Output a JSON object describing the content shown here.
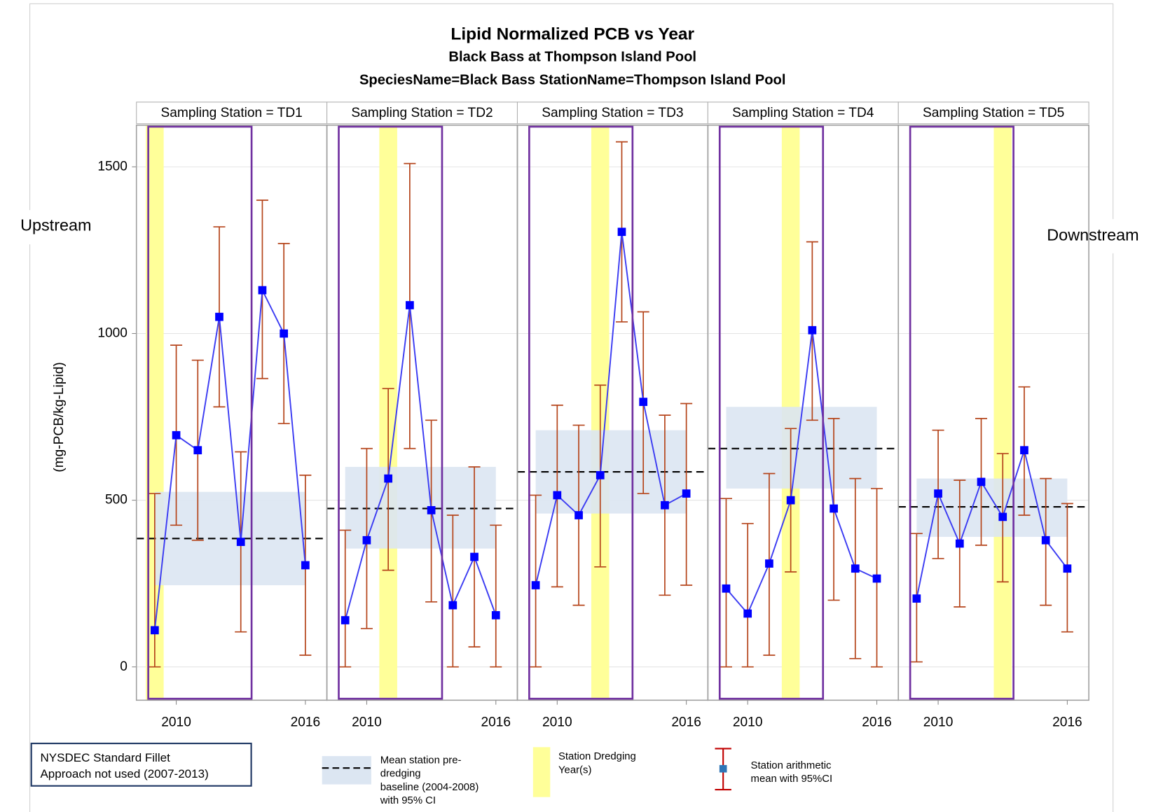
{
  "chart_data": {
    "type": "errorbar-panel",
    "title": "Lipid Normalized PCB vs Year",
    "subtitle": "Black Bass at Thompson Island Pool",
    "subtitle2": "SpeciesName=Black Bass StationName=Thompson Island Pool",
    "ylabel": "(mg-PCB/kg-Lipid)",
    "ylim": [
      -100,
      1625
    ],
    "yticks": [
      0,
      500,
      1000,
      1500
    ],
    "xlim": [
      2008.15,
      2017.0
    ],
    "xticks": [
      2010,
      2016
    ],
    "grid": true,
    "line_color": "#3b3bf2",
    "marker_color": "#0000ff",
    "errorbar_color": "#b5451b",
    "baseline_color": "#dce6f2",
    "dredging_color": "#ffff99",
    "fillet_color": "#7030a0",
    "fillet_xlim": [
      2008.7,
      2013.5
    ],
    "left_annotation": "Upstream",
    "right_annotation": "Downstream",
    "panels": [
      {
        "title": "Sampling Station = TD1",
        "x": [
          2009,
          2010,
          2011,
          2012,
          2013,
          2014,
          2015,
          2016
        ],
        "values": [
          110,
          695,
          650,
          1050,
          375,
          1130,
          1000,
          305
        ],
        "lower": [
          0,
          425,
          380,
          780,
          105,
          865,
          730,
          35
        ],
        "upper": [
          520,
          965,
          920,
          1320,
          645,
          1400,
          1270,
          575
        ],
        "baseline": 385,
        "baseline_ci": [
          245,
          525
        ],
        "dredging_years": [
          2009
        ]
      },
      {
        "title": "Sampling Station = TD2",
        "x": [
          2009,
          2010,
          2011,
          2012,
          2013,
          2014,
          2015,
          2016
        ],
        "values": [
          140,
          380,
          565,
          1085,
          470,
          185,
          330,
          155
        ],
        "lower": [
          0,
          115,
          290,
          655,
          195,
          0,
          60,
          0
        ],
        "upper": [
          410,
          655,
          835,
          1510,
          740,
          455,
          600,
          425
        ],
        "baseline": 475,
        "baseline_ci": [
          355,
          600
        ],
        "dredging_years": [
          2011
        ]
      },
      {
        "title": "Sampling Station = TD3",
        "x": [
          2009,
          2010,
          2011,
          2012,
          2013,
          2014,
          2015,
          2016
        ],
        "values": [
          245,
          515,
          455,
          575,
          1305,
          795,
          485,
          520
        ],
        "lower": [
          0,
          240,
          185,
          300,
          1035,
          520,
          215,
          245
        ],
        "upper": [
          515,
          785,
          725,
          845,
          1575,
          1065,
          755,
          790
        ],
        "baseline": 585,
        "baseline_ci": [
          460,
          710
        ],
        "dredging_years": [
          2012
        ]
      },
      {
        "title": "Sampling Station = TD4",
        "x": [
          2009,
          2010,
          2011,
          2012,
          2013,
          2014,
          2015,
          2016
        ],
        "values": [
          235,
          160,
          310,
          500,
          1010,
          475,
          295,
          265
        ],
        "lower": [
          0,
          0,
          35,
          285,
          740,
          200,
          25,
          0
        ],
        "upper": [
          505,
          430,
          580,
          715,
          1275,
          745,
          565,
          535
        ],
        "baseline": 655,
        "baseline_ci": [
          535,
          780
        ],
        "dredging_years": [
          2012
        ]
      },
      {
        "title": "Sampling Station = TD5",
        "x": [
          2009,
          2010,
          2011,
          2012,
          2013,
          2014,
          2015,
          2016
        ],
        "values": [
          205,
          520,
          370,
          555,
          450,
          650,
          380,
          295
        ],
        "lower": [
          15,
          325,
          180,
          365,
          255,
          455,
          185,
          105
        ],
        "upper": [
          400,
          710,
          560,
          745,
          640,
          840,
          565,
          490
        ],
        "baseline": 480,
        "baseline_ci": [
          390,
          565
        ],
        "dredging_years": [
          2013
        ]
      }
    ],
    "legend": {
      "fillet": [
        "NYSDEC Standard Fillet",
        "Approach not used (2007-2013)"
      ],
      "baseline": [
        "Mean station pre-",
        "dredging",
        "baseline (2004-2008)",
        "with 95% CI"
      ],
      "dredging": [
        "Station Dredging",
        "Year(s)"
      ],
      "mean": [
        "Station arithmetic",
        "mean with 95%CI"
      ]
    }
  }
}
